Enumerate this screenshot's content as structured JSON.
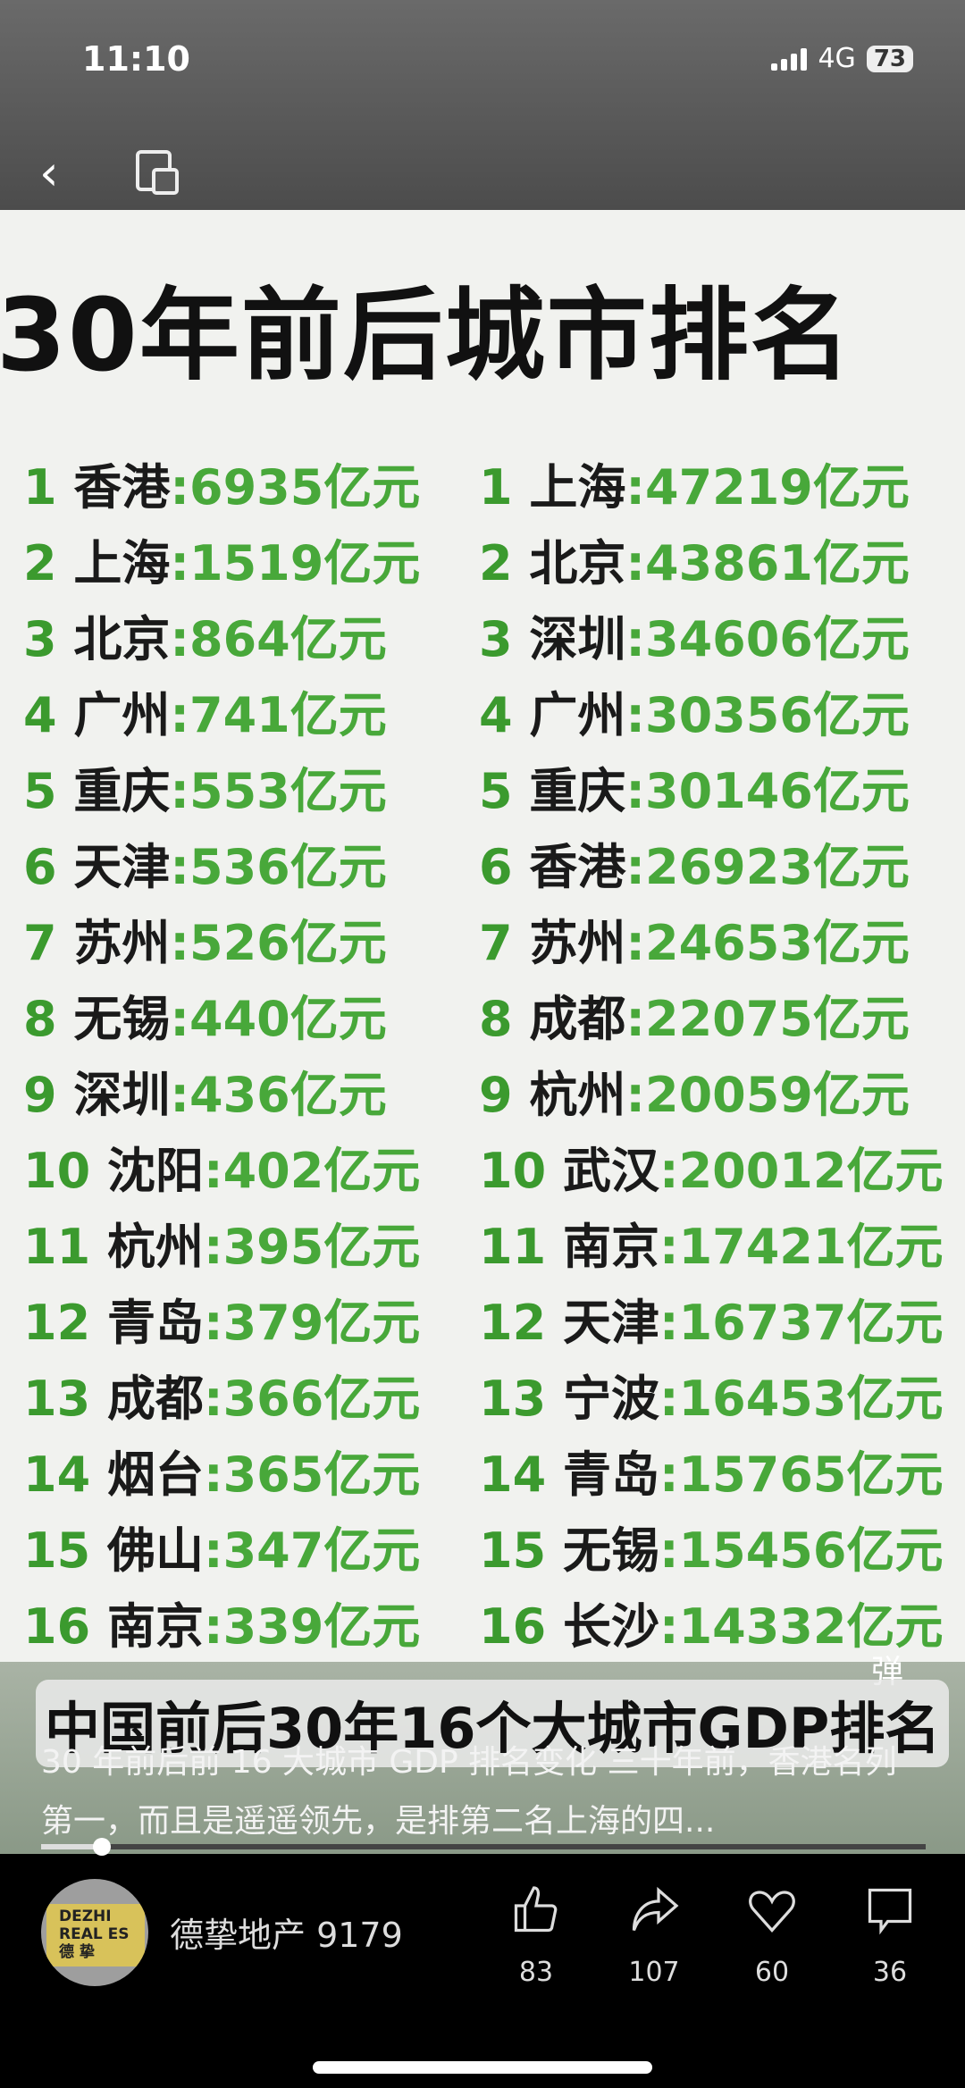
{
  "status_bar": {
    "time": "11:10",
    "network": "4G",
    "battery": "73"
  },
  "video": {
    "title": "30年前后城市排名",
    "left_column": [
      {
        "rank": "1",
        "city": "香港",
        "value": "6935亿元"
      },
      {
        "rank": "2",
        "city": "上海",
        "value": "1519亿元"
      },
      {
        "rank": "3",
        "city": "北京",
        "value": "864亿元"
      },
      {
        "rank": "4",
        "city": "广州",
        "value": "741亿元"
      },
      {
        "rank": "5",
        "city": "重庆",
        "value": "553亿元"
      },
      {
        "rank": "6",
        "city": "天津",
        "value": "536亿元"
      },
      {
        "rank": "7",
        "city": "苏州",
        "value": "526亿元"
      },
      {
        "rank": "8",
        "city": "无锡",
        "value": "440亿元"
      },
      {
        "rank": "9",
        "city": "深圳",
        "value": "436亿元"
      },
      {
        "rank": "10",
        "city": "沈阳",
        "value": "402亿元"
      },
      {
        "rank": "11",
        "city": "杭州",
        "value": "395亿元"
      },
      {
        "rank": "12",
        "city": "青岛",
        "value": "379亿元"
      },
      {
        "rank": "13",
        "city": "成都",
        "value": "366亿元"
      },
      {
        "rank": "14",
        "city": "烟台",
        "value": "365亿元"
      },
      {
        "rank": "15",
        "city": "佛山",
        "value": "347亿元"
      },
      {
        "rank": "16",
        "city": "南京",
        "value": "339亿元"
      }
    ],
    "right_column": [
      {
        "rank": "1",
        "city": "上海",
        "value": "47219亿元"
      },
      {
        "rank": "2",
        "city": "北京",
        "value": "43861亿元"
      },
      {
        "rank": "3",
        "city": "深圳",
        "value": "34606亿元"
      },
      {
        "rank": "4",
        "city": "广州",
        "value": "30356亿元"
      },
      {
        "rank": "5",
        "city": "重庆",
        "value": "30146亿元"
      },
      {
        "rank": "6",
        "city": "香港",
        "value": "26923亿元"
      },
      {
        "rank": "7",
        "city": "苏州",
        "value": "24653亿元"
      },
      {
        "rank": "8",
        "city": "成都",
        "value": "22075亿元"
      },
      {
        "rank": "9",
        "city": "杭州",
        "value": "20059亿元"
      },
      {
        "rank": "10",
        "city": "武汉",
        "value": "20012亿元"
      },
      {
        "rank": "11",
        "city": "南京",
        "value": "17421亿元"
      },
      {
        "rank": "12",
        "city": "天津",
        "value": "16737亿元"
      },
      {
        "rank": "13",
        "city": "宁波",
        "value": "16453亿元"
      },
      {
        "rank": "14",
        "city": "青岛",
        "value": "15765亿元"
      },
      {
        "rank": "15",
        "city": "无锡",
        "value": "15456亿元"
      },
      {
        "rank": "16",
        "city": "长沙",
        "value": "14332亿元"
      }
    ],
    "overlay_caption": "中国前后30年16个大城市GDP排名",
    "danmu_label": "弹",
    "progress_percent": 6
  },
  "description": "30 年前后前 16 大城市 GDP 排名变化 三十年前，香港名列第一，而且是遥遥领先，是排第二名上海的四...",
  "author": {
    "name": "德挚地产 9179",
    "avatar_text": [
      "DEZHI",
      "REAL ES",
      "德 挚"
    ]
  },
  "actions": {
    "like": "83",
    "share": "107",
    "favorite": "60",
    "comment": "36"
  }
}
